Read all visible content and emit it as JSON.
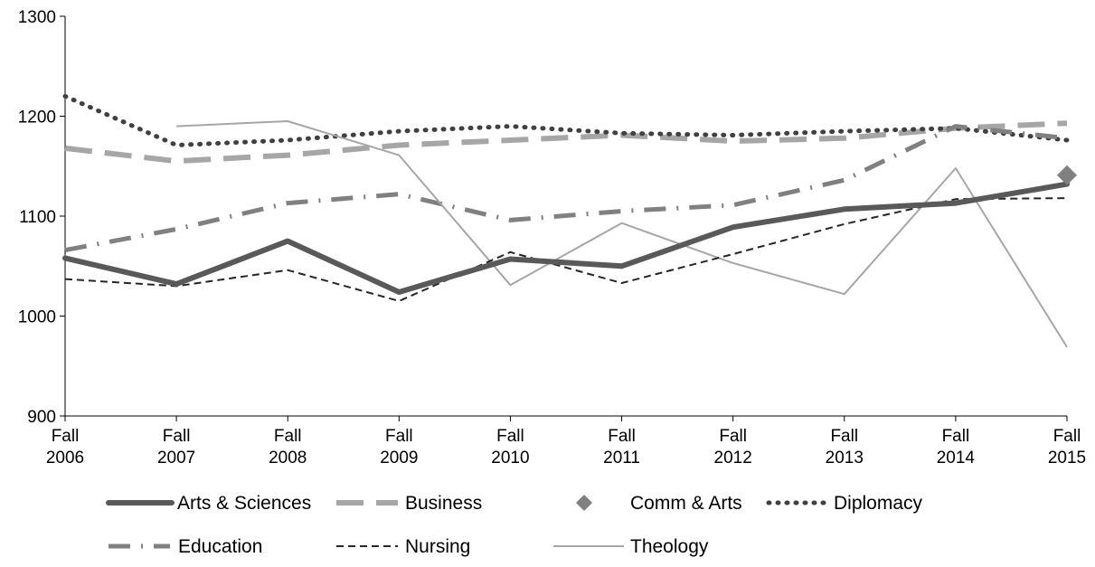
{
  "chart_data": {
    "type": "line",
    "title": "",
    "xlabel": "",
    "ylabel": "",
    "x": [
      "Fall 2006",
      "Fall 2007",
      "Fall 2008",
      "Fall 2009",
      "Fall 2010",
      "Fall 2011",
      "Fall 2012",
      "Fall 2013",
      "Fall 2014",
      "Fall 2015"
    ],
    "x_tick_lines": [
      [
        "Fall",
        "2006"
      ],
      [
        "Fall",
        "2007"
      ],
      [
        "Fall",
        "2008"
      ],
      [
        "Fall",
        "2009"
      ],
      [
        "Fall",
        "2010"
      ],
      [
        "Fall",
        "2011"
      ],
      [
        "Fall",
        "2012"
      ],
      [
        "Fall",
        "2013"
      ],
      [
        "Fall",
        "2014"
      ],
      [
        "Fall",
        "2015"
      ]
    ],
    "ylim": [
      900,
      1300
    ],
    "y_ticks": [
      900,
      1000,
      1100,
      1200,
      1300
    ],
    "grid": false,
    "legend_position": "bottom",
    "series": [
      {
        "name": "Arts & Sciences",
        "color": "#595959",
        "style": "thick-solid",
        "values": [
          1058,
          1032,
          1075,
          1024,
          1057,
          1050,
          1089,
          1107,
          1113,
          1132
        ]
      },
      {
        "name": "Business",
        "color": "#a6a6a6",
        "style": "long-dash",
        "values": [
          1168,
          1155,
          1161,
          1171,
          1176,
          1181,
          1175,
          1178,
          1188,
          1193
        ]
      },
      {
        "name": "Comm & Arts",
        "color": "#808080",
        "style": "marker-diamond",
        "values": [
          null,
          null,
          null,
          null,
          null,
          null,
          null,
          null,
          null,
          1141
        ]
      },
      {
        "name": "Diplomacy",
        "color": "#404040",
        "style": "dotted",
        "values": [
          1220,
          1171,
          1176,
          1185,
          1190,
          1183,
          1181,
          1185,
          1188,
          1176
        ]
      },
      {
        "name": "Education",
        "color": "#808080",
        "style": "dash-dot",
        "values": [
          1066,
          1087,
          1113,
          1122,
          1096,
          1105,
          1111,
          1136,
          1190,
          1178
        ]
      },
      {
        "name": "Nursing",
        "color": "#262626",
        "style": "short-dash",
        "values": [
          1037,
          1030,
          1046,
          1015,
          1064,
          1033,
          1062,
          1092,
          1117,
          1118
        ]
      },
      {
        "name": "Theology",
        "color": "#a6a6a6",
        "style": "thin-solid",
        "values": [
          null,
          1190,
          1195,
          1161,
          1031,
          1093,
          1053,
          1022,
          1148,
          969
        ]
      }
    ]
  }
}
